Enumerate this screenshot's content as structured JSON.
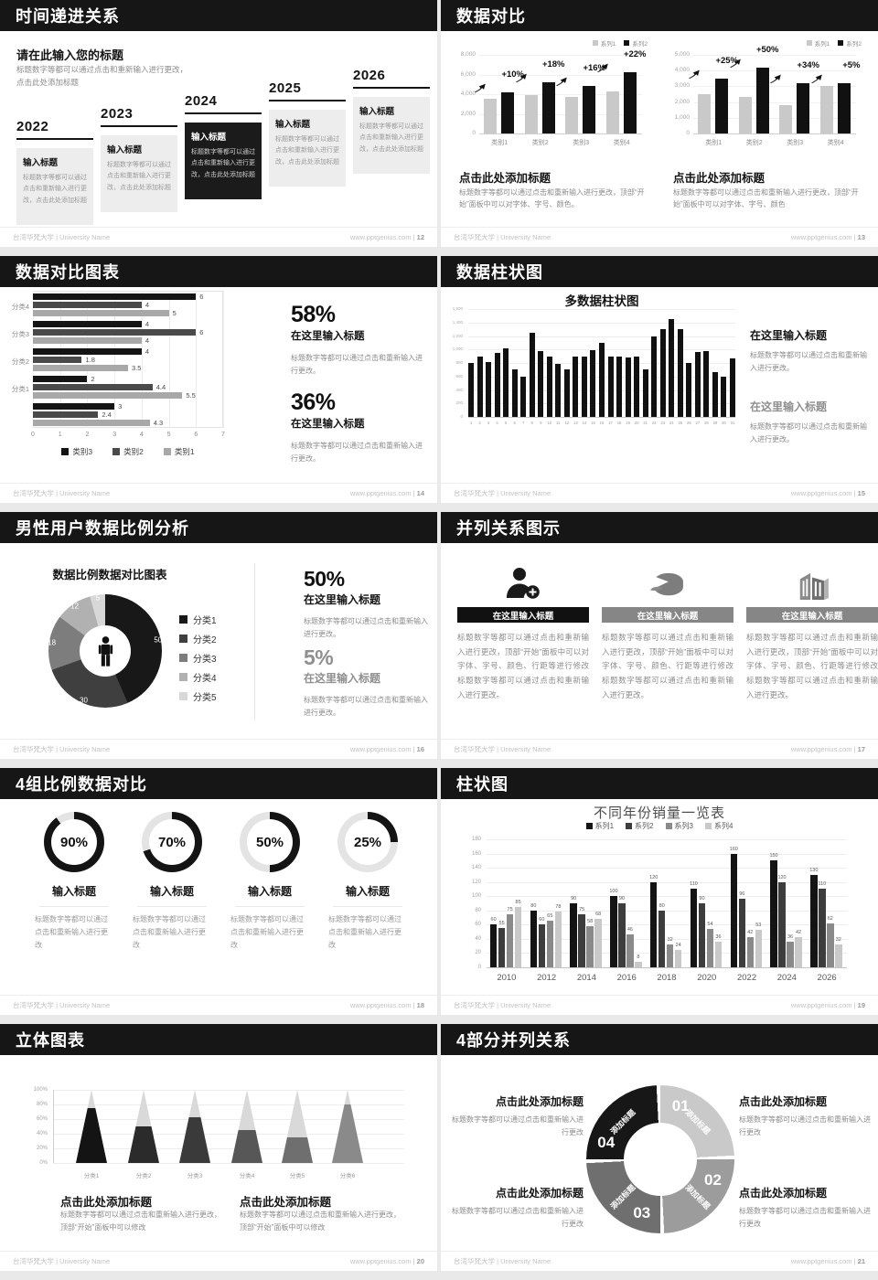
{
  "footer": {
    "org": "台湾华梵大学 | University Name",
    "site": "www.pptgenius.com",
    "sep": " | "
  },
  "slides": {
    "s12": {
      "title": "时间递进关系",
      "page": "12",
      "heading": "请在此输入您的标题",
      "intro": "标题数字等都可以通过点击和重新输入进行更改，点击此处添加标题",
      "milestones": [
        {
          "year": "2022",
          "box_title": "输入标题",
          "box_body": "标题数字等都可以通过点击和重新输入进行更改，点击此处添加标题",
          "dark": false
        },
        {
          "year": "2023",
          "box_title": "输入标题",
          "box_body": "标题数字等都可以通过点击和重新输入进行更改，点击此处添加标题",
          "dark": false
        },
        {
          "year": "2024",
          "box_title": "输入标题",
          "box_body": "标题数字等都可以通过点击和重新输入进行更改，点击此处添加标题",
          "dark": true
        },
        {
          "year": "2025",
          "box_title": "输入标题",
          "box_body": "标题数字等都可以通过点击和重新输入进行更改，点击此处添加标题",
          "dark": false
        },
        {
          "year": "2026",
          "box_title": "输入标题",
          "box_body": "标题数字等都可以通过点击和重新输入进行更改，点击此处添加标题",
          "dark": false
        }
      ]
    },
    "s13": {
      "title": "数据对比",
      "page": "13",
      "panels": [
        {
          "heading": "点击此处添加标题",
          "body": "标题数字等都可以通过点击和重新输入进行更改，顶部“开始”面板中可以对字体、字号、颜色。"
        },
        {
          "heading": "点击此处添加标题",
          "body": "标题数字等都可以通过点击和重新输入进行更改，顶部“开始”面板中可以对字体、字号、颜色"
        }
      ]
    },
    "s14": {
      "title": "数据对比图表",
      "page": "14",
      "stats": [
        {
          "value": "58%",
          "heading": "在这里输入标题",
          "body": "标题数字等都可以通过点击和重新输入进行更改。"
        },
        {
          "value": "36%",
          "heading": "在这里输入标题",
          "body": "标题数字等都可以通过点击和重新输入进行更改。"
        }
      ]
    },
    "s15": {
      "title": "数据柱状图",
      "page": "15",
      "stats": [
        {
          "heading": "在这里输入标题",
          "body": "标题数字等都可以通过点击和重新输入进行更改。"
        },
        {
          "heading": "在这里输入标题",
          "body": "标题数字等都可以通过点击和重新输入进行更改。"
        }
      ]
    },
    "s16": {
      "title": "男性用户数据比例分析",
      "page": "16",
      "stats": [
        {
          "value": "50%",
          "heading": "在这里输入标题",
          "body": "标题数字等都可以通过点击和重新输入进行更改。"
        },
        {
          "value": "5%",
          "heading": "在这里输入标题",
          "body": "标题数字等都可以通过点击和重新输入进行更改。"
        }
      ]
    },
    "s17": {
      "title": "并列关系图示",
      "page": "17",
      "column_heading": "在这里输入标题",
      "column_body": "标题数字等都可以通过点击和重新输入进行更改，顶部“开始”面板中可以对字体、字号、颜色、行距等进行修改标题数字等都可以通过点击和重新输入进行更改。",
      "icons": [
        "add-user-icon",
        "pie-chart-icon",
        "building-icon"
      ]
    },
    "s18": {
      "title": "4组比例数据对比",
      "page": "18",
      "gauge_heading": "输入标题",
      "gauge_body": "标题数字等都可以通过点击和重新输入进行更改"
    },
    "s19": {
      "title": "柱状图",
      "page": "19"
    },
    "s20": {
      "title": "立体图表",
      "page": "20",
      "block_heading": "点击此处添加标题",
      "block_body": "标题数字等都可以通过点击和重新输入进行更改，顶部“开始”面板中可以修改"
    },
    "s21": {
      "title": "4部分并列关系",
      "page": "21",
      "block_heading": "点击此处添加标题",
      "block_body": "标题数字等都可以通过点击和重新输入进行更改",
      "segment_label": "添加标题"
    }
  },
  "chart_data": [
    {
      "id": "compare-left",
      "type": "bar",
      "categories": [
        "类别1",
        "类别2",
        "类别3",
        "类别4"
      ],
      "series": [
        {
          "name": "系列1",
          "color": "#c9c9c9",
          "values": [
            3500,
            3900,
            3700,
            4300
          ]
        },
        {
          "name": "系列2",
          "color": "#111111",
          "values": [
            4200,
            5200,
            4800,
            6200
          ]
        }
      ],
      "growth": [
        "+10%",
        "+18%",
        "+16%",
        "+22%"
      ],
      "ylim": [
        0,
        8000
      ],
      "ytick_labels": [
        "0",
        "2,000",
        "4,000",
        "6,000",
        "8,000"
      ],
      "legend_position": "top-right"
    },
    {
      "id": "compare-right",
      "type": "bar",
      "categories": [
        "类别1",
        "类别2",
        "类别3",
        "类别4"
      ],
      "series": [
        {
          "name": "系列1",
          "color": "#c9c9c9",
          "values": [
            2500,
            2300,
            1800,
            3000
          ]
        },
        {
          "name": "系列2",
          "color": "#111111",
          "values": [
            3500,
            4200,
            3200,
            3200
          ]
        }
      ],
      "growth": [
        "+25%",
        "+50%",
        "+34%",
        "+5%"
      ],
      "ylim": [
        0,
        5000
      ],
      "ytick_labels": [
        "0",
        "1,000",
        "2,000",
        "3,000",
        "4,000",
        "5,000"
      ],
      "legend_position": "top-right"
    },
    {
      "id": "h-compare",
      "type": "bar",
      "orientation": "horizontal",
      "categories": [
        "分类4",
        "分类3",
        "分类2",
        "分类1",
        ""
      ],
      "series": [
        {
          "name": "类别3",
          "color": "#141414",
          "values": [
            6,
            4,
            4,
            2,
            3
          ]
        },
        {
          "name": "类别2",
          "color": "#4a4a4a",
          "values": [
            4,
            6,
            1.8,
            4.4,
            2.4
          ]
        },
        {
          "name": "类别1",
          "color": "#a8a8a8",
          "values": [
            5,
            4,
            3.5,
            5.5,
            4.3
          ]
        }
      ],
      "xlim": [
        0,
        7
      ],
      "xtick_labels": [
        "0",
        "1",
        "2",
        "3",
        "4",
        "5",
        "6",
        "7"
      ],
      "legend_position": "bottom"
    },
    {
      "id": "multi-bar",
      "type": "bar",
      "title": "多数据柱状图",
      "color": "#111111",
      "x": [
        1,
        2,
        3,
        4,
        5,
        6,
        7,
        8,
        9,
        10,
        11,
        12,
        13,
        14,
        15,
        16,
        17,
        18,
        19,
        20,
        21,
        22,
        23,
        24,
        25,
        26,
        27,
        28,
        29,
        30,
        31
      ],
      "values": [
        800,
        900,
        810,
        950,
        1020,
        700,
        600,
        1250,
        980,
        890,
        780,
        700,
        890,
        900,
        990,
        1100,
        900,
        900,
        880,
        900,
        700,
        1200,
        1300,
        1450,
        1300,
        800,
        960,
        970,
        660,
        600,
        870
      ],
      "ylim": [
        0,
        1600
      ],
      "ytick_labels": [
        "0",
        "200",
        "400",
        "600",
        "800",
        "1,000",
        "1,200",
        "1,400",
        "1,600"
      ]
    },
    {
      "id": "ratio-donut",
      "type": "pie",
      "title": "数据比例数据对比图表",
      "labels": [
        "分类1",
        "分类2",
        "分类3",
        "分类4",
        "分类5"
      ],
      "values": [
        50,
        30,
        18,
        12,
        5
      ],
      "colors": [
        "#181818",
        "#3f3f3f",
        "#7d7d7d",
        "#b1b1b1",
        "#d8d8d8"
      ],
      "center_icon": "male-person-icon"
    },
    {
      "id": "gauges",
      "type": "pie",
      "values": [
        90,
        70,
        50,
        25
      ],
      "labels": [
        "90%",
        "70%",
        "50%",
        "25%"
      ],
      "color": "#141414",
      "track_color": "#e4e4e4"
    },
    {
      "id": "year-sales",
      "type": "bar",
      "title": "不同年份销量一览表",
      "categories": [
        "2010",
        "2012",
        "2014",
        "2016",
        "2018",
        "2020",
        "2022",
        "2024",
        "2026"
      ],
      "series": [
        {
          "name": "系列1",
          "color": "#141414",
          "values": [
            60,
            80,
            90,
            100,
            120,
            110,
            160,
            150,
            130
          ]
        },
        {
          "name": "系列2",
          "color": "#3d3d3d",
          "values": [
            55,
            60,
            75,
            90,
            80,
            90,
            96,
            120,
            110
          ]
        },
        {
          "name": "系列3",
          "color": "#8a8a8a",
          "values": [
            75,
            65,
            58,
            46,
            32,
            54,
            42,
            36,
            62
          ]
        },
        {
          "name": "系列4",
          "color": "#c9c9c9",
          "values": [
            85,
            78,
            68,
            8,
            24,
            36,
            53,
            42,
            32
          ]
        }
      ],
      "ylim": [
        0,
        180
      ],
      "ytick_labels": [
        "0",
        "20",
        "40",
        "60",
        "80",
        "100",
        "120",
        "140",
        "160",
        "180"
      ],
      "legend_position": "top"
    },
    {
      "id": "cones",
      "type": "bar",
      "categories": [
        "分类1",
        "分类2",
        "分类3",
        "分类4",
        "分类5",
        "分类6"
      ],
      "values_percent": [
        75,
        50,
        62,
        45,
        35,
        80
      ],
      "colors": [
        "#141414",
        "#2b2b2b",
        "#3a3a3a",
        "#575757",
        "#6f6f6f",
        "#8a8a8a"
      ],
      "top_color": "#d9d9d9",
      "ytick_labels": [
        "0%",
        "20%",
        "40%",
        "60%",
        "80%",
        "100%"
      ]
    },
    {
      "id": "cycle",
      "type": "pie",
      "label": "添加标题",
      "segments": [
        {
          "num": "01",
          "color": "#c9c9c9"
        },
        {
          "num": "02",
          "color": "#9c9c9c"
        },
        {
          "num": "03",
          "color": "#6f6f6f"
        },
        {
          "num": "04",
          "color": "#171717"
        }
      ]
    }
  ]
}
